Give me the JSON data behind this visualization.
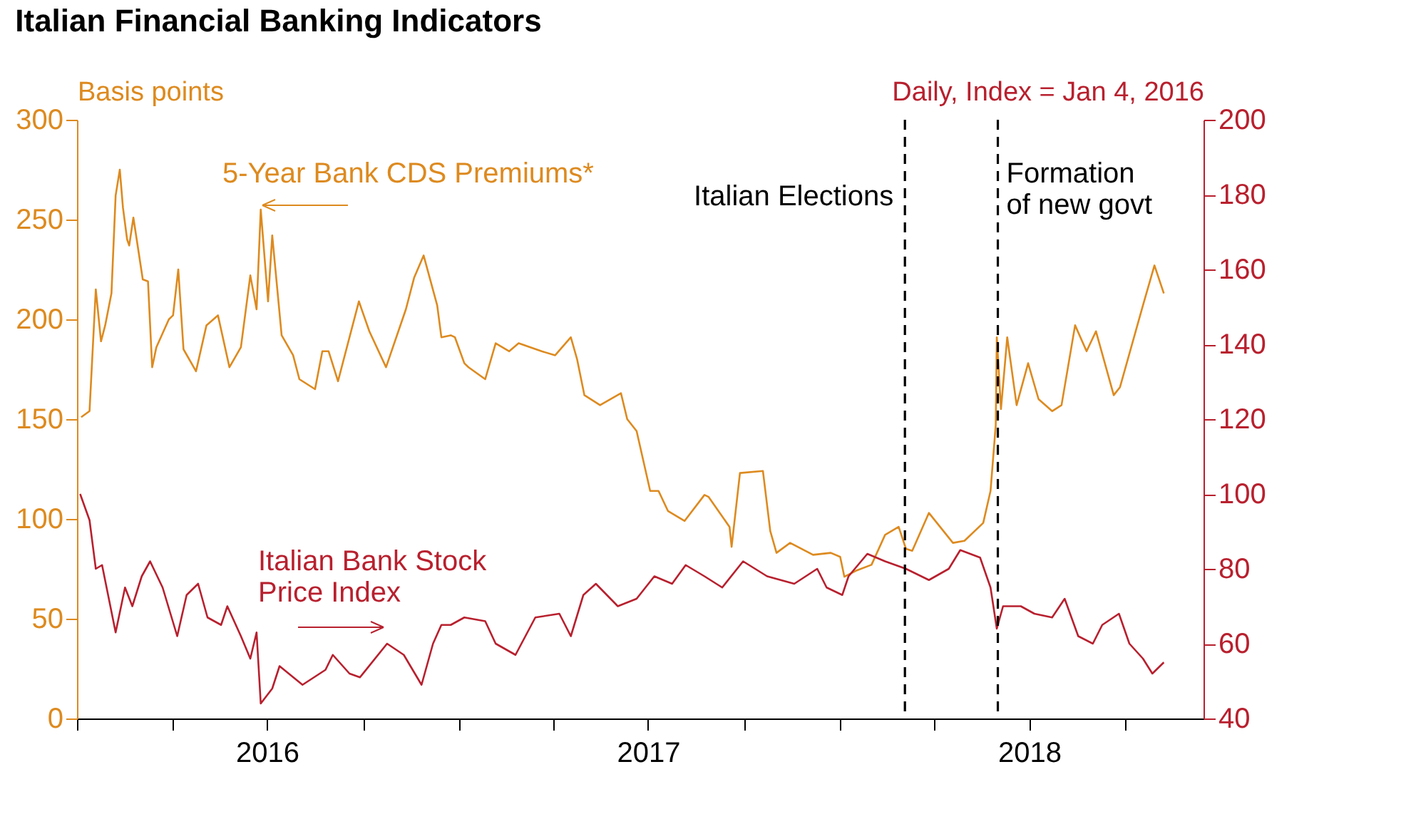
{
  "chart_data": {
    "type": "line",
    "title": "Italian Financial Banking Indicators",
    "ylabel": "Basis points",
    "y2label": "Daily, Index = Jan 4, 2016",
    "xlim": [
      "2016-01-01",
      "2018-12-15"
    ],
    "xticks": [
      {
        "value": "2016-01-01",
        "label": null
      },
      {
        "value": "2016-04-01",
        "label": null
      },
      {
        "value": "2016-07-01",
        "label": "2016"
      },
      {
        "value": "2016-10-01",
        "label": null
      },
      {
        "value": "2017-01-01",
        "label": null
      },
      {
        "value": "2017-04-01",
        "label": null
      },
      {
        "value": "2017-07-01",
        "label": "2017"
      },
      {
        "value": "2017-10-01",
        "label": null
      },
      {
        "value": "2018-01-01",
        "label": null
      },
      {
        "value": "2018-04-01",
        "label": null
      },
      {
        "value": "2018-07-01",
        "label": "2018"
      },
      {
        "value": "2018-10-01",
        "label": null
      }
    ],
    "ylim": [
      0,
      300
    ],
    "yticks": [
      0,
      50,
      100,
      150,
      200,
      250,
      300
    ],
    "y2lim": [
      40,
      200
    ],
    "y2ticks": [
      40,
      60,
      80,
      100,
      120,
      140,
      160,
      180,
      200
    ],
    "grid": false,
    "series": [
      {
        "name": "5-Year Bank CDS Premiums*",
        "color": "#dd8a1f",
        "x": [
          "2016-01-05",
          "2016-01-13",
          "2016-01-19",
          "2016-01-24",
          "2016-01-28",
          "2016-02-03",
          "2016-02-07",
          "2016-02-11",
          "2016-02-14",
          "2016-02-18",
          "2016-02-20",
          "2016-02-24",
          "2016-03-04",
          "2016-03-09",
          "2016-03-13",
          "2016-03-17",
          "2016-03-29",
          "2016-04-02",
          "2016-04-07",
          "2016-04-12",
          "2016-04-24",
          "2016-05-04",
          "2016-05-15",
          "2016-05-26",
          "2016-06-06",
          "2016-06-15",
          "2016-06-21",
          "2016-06-25",
          "2016-07-02",
          "2016-07-06",
          "2016-07-15",
          "2016-07-26",
          "2016-08-01",
          "2016-08-16",
          "2016-08-23",
          "2016-08-29",
          "2016-09-07",
          "2016-09-27",
          "2016-10-07",
          "2016-10-23",
          "2016-11-11",
          "2016-11-19",
          "2016-11-28",
          "2016-12-11",
          "2016-12-15",
          "2016-12-24",
          "2016-12-28",
          "2017-01-06",
          "2017-01-10",
          "2017-01-26",
          "2017-02-05",
          "2017-02-18",
          "2017-02-27",
          "2017-03-21",
          "2017-04-03",
          "2017-04-18",
          "2017-04-24",
          "2017-05-01",
          "2017-05-16",
          "2017-06-05",
          "2017-06-11",
          "2017-06-20",
          "2017-07-03",
          "2017-07-11",
          "2017-07-20",
          "2017-08-05",
          "2017-08-24",
          "2017-08-28",
          "2017-09-17",
          "2017-09-19",
          "2017-09-27",
          "2017-10-19",
          "2017-10-26",
          "2017-11-01",
          "2017-11-14",
          "2017-12-06",
          "2017-12-23",
          "2018-01-01",
          "2018-01-05",
          "2018-01-16",
          "2018-01-31",
          "2018-02-13",
          "2018-02-26",
          "2018-03-05",
          "2018-03-11",
          "2018-03-27",
          "2018-04-19",
          "2018-04-30",
          "2018-05-18",
          "2018-05-25",
          "2018-05-30",
          "2018-05-31",
          "2018-06-04",
          "2018-06-10",
          "2018-06-19",
          "2018-06-30",
          "2018-07-10",
          "2018-07-23",
          "2018-08-01",
          "2018-08-14",
          "2018-08-25",
          "2018-09-03",
          "2018-09-20",
          "2018-09-26",
          "2018-10-18",
          "2018-10-29",
          "2018-11-07"
        ],
        "values": [
          151,
          154,
          215,
          189,
          197,
          213,
          262,
          275,
          256,
          240,
          237,
          251,
          220,
          219,
          176,
          186,
          200,
          202,
          225,
          185,
          174,
          197,
          202,
          176,
          186,
          222,
          205,
          255,
          209,
          242,
          192,
          182,
          170,
          165,
          184,
          184,
          169,
          209,
          194,
          176,
          205,
          221,
          232,
          207,
          191,
          192,
          191,
          178,
          176,
          170,
          188,
          184,
          188,
          184,
          182,
          191,
          180,
          162,
          157,
          163,
          150,
          144,
          114,
          114,
          104,
          99,
          112,
          111,
          96,
          86,
          123,
          124,
          94,
          83,
          88,
          82,
          83,
          81,
          71,
          74,
          77,
          92,
          96,
          85,
          84,
          103,
          88,
          89,
          98,
          114,
          147,
          191,
          155,
          191,
          157,
          178,
          160,
          154,
          157,
          197,
          184,
          194,
          162,
          166,
          207,
          227,
          213
        ]
      },
      {
        "name": "Italian Bank Stock\nPrice Index",
        "color": "#b8202e",
        "axis": "y2",
        "x": [
          "2016-01-04",
          "2016-01-13",
          "2016-01-19",
          "2016-01-25",
          "2016-02-07",
          "2016-02-16",
          "2016-02-23",
          "2016-03-03",
          "2016-03-11",
          "2016-03-23",
          "2016-04-06",
          "2016-04-15",
          "2016-04-26",
          "2016-05-05",
          "2016-05-18",
          "2016-05-24",
          "2016-06-06",
          "2016-06-15",
          "2016-06-21",
          "2016-06-25",
          "2016-07-06",
          "2016-07-13",
          "2016-08-04",
          "2016-08-26",
          "2016-09-02",
          "2016-09-18",
          "2016-09-28",
          "2016-10-24",
          "2016-11-09",
          "2016-11-26",
          "2016-12-07",
          "2016-12-15",
          "2016-12-24",
          "2017-01-06",
          "2017-01-26",
          "2017-02-05",
          "2017-02-24",
          "2017-03-15",
          "2017-04-07",
          "2017-04-18",
          "2017-04-30",
          "2017-05-12",
          "2017-06-02",
          "2017-06-20",
          "2017-07-07",
          "2017-07-24",
          "2017-08-06",
          "2017-08-24",
          "2017-09-10",
          "2017-09-30",
          "2017-10-23",
          "2017-11-18",
          "2017-12-10",
          "2017-12-19",
          "2018-01-03",
          "2018-01-09",
          "2018-01-27",
          "2018-02-13",
          "2018-03-05",
          "2018-03-27",
          "2018-04-15",
          "2018-04-26",
          "2018-05-15",
          "2018-05-25",
          "2018-05-31",
          "2018-06-06",
          "2018-06-23",
          "2018-07-06",
          "2018-07-23",
          "2018-08-04",
          "2018-08-17",
          "2018-08-31",
          "2018-09-09",
          "2018-09-25",
          "2018-10-05",
          "2018-10-18",
          "2018-10-27",
          "2018-11-07"
        ],
        "values": [
          100,
          93,
          80,
          81,
          63,
          75,
          70,
          78,
          82,
          75,
          62,
          73,
          76,
          67,
          65,
          70,
          62,
          56,
          63,
          44,
          48,
          54,
          49,
          53,
          57,
          52,
          51,
          60,
          57,
          49,
          60,
          65,
          65,
          67,
          66,
          60,
          57,
          67,
          68,
          62,
          73,
          76,
          70,
          72,
          78,
          76,
          81,
          78,
          75,
          82,
          78,
          76,
          80,
          75,
          73,
          78,
          84,
          82,
          80,
          77,
          80,
          85,
          83,
          75,
          64,
          70,
          70,
          68,
          67,
          72,
          62,
          60,
          65,
          68,
          60,
          56,
          52,
          55
        ]
      }
    ],
    "ref_lines": [
      {
        "axis": "x",
        "value": "2018-03-04",
        "label": "Italian Elections",
        "color": "#000000",
        "line_style": "dashed"
      },
      {
        "axis": "x",
        "value": "2018-06-01",
        "label": "Formation\nof new govt",
        "color": "#000000",
        "line_style": "dashed"
      }
    ]
  }
}
